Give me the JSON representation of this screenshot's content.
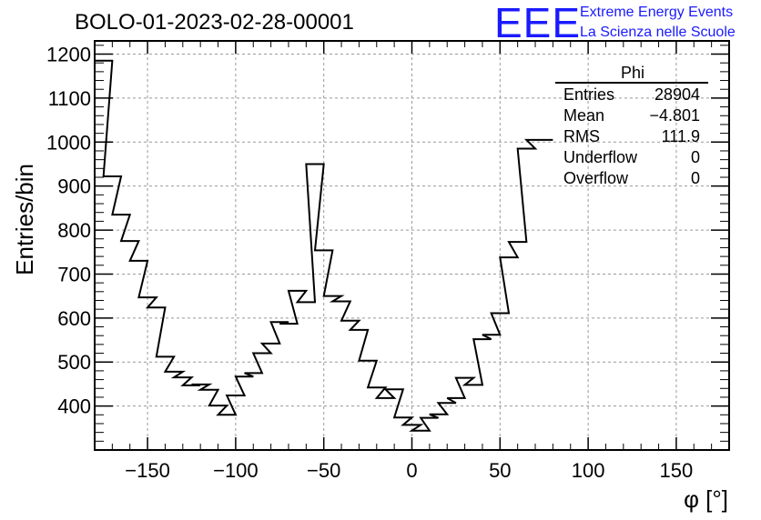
{
  "chart_data": {
    "type": "bar",
    "title": "BOLO-01-2023-02-28-00001",
    "xlabel": "φ [°]",
    "ylabel": "Entries/bin",
    "xlim": [
      -180,
      180
    ],
    "ylim": [
      300,
      1230
    ],
    "bin_width": 10,
    "x_ticks": [
      -150,
      -100,
      -50,
      0,
      50,
      100,
      150
    ],
    "x_tick_labels": [
      "−150",
      "−100",
      "−50",
      "0",
      "50",
      "100",
      "150"
    ],
    "y_ticks": [
      400,
      500,
      600,
      700,
      800,
      900,
      1000,
      1100,
      1200
    ],
    "y_tick_labels": [
      "400",
      "500",
      "600",
      "700",
      "800",
      "900",
      "1000",
      "1100",
      "1200"
    ],
    "grid": true,
    "bins": [
      {
        "x": -175,
        "y": 1185
      },
      {
        "x": -170,
        "y": 922
      },
      {
        "x": -165,
        "y": 835
      },
      {
        "x": -160,
        "y": 775
      },
      {
        "x": -155,
        "y": 730
      },
      {
        "x": -150,
        "y": 647
      },
      {
        "x": -145,
        "y": 624
      },
      {
        "x": -140,
        "y": 512
      },
      {
        "x": -135,
        "y": 478
      },
      {
        "x": -130,
        "y": 465
      },
      {
        "x": -125,
        "y": 447
      },
      {
        "x": -120,
        "y": 449
      },
      {
        "x": -115,
        "y": 437
      },
      {
        "x": -110,
        "y": 401
      },
      {
        "x": -105,
        "y": 380
      },
      {
        "x": -100,
        "y": 424
      },
      {
        "x": -95,
        "y": 467
      },
      {
        "x": -90,
        "y": 475
      },
      {
        "x": -85,
        "y": 520
      },
      {
        "x": -80,
        "y": 542
      },
      {
        "x": -75,
        "y": 591
      },
      {
        "x": -70,
        "y": 587
      },
      {
        "x": -65,
        "y": 662
      },
      {
        "x": -60,
        "y": 636
      },
      {
        "x": -55,
        "y": 950
      },
      {
        "x": -50,
        "y": 754
      },
      {
        "x": -45,
        "y": 650
      },
      {
        "x": -40,
        "y": 638
      },
      {
        "x": -35,
        "y": 594
      },
      {
        "x": -30,
        "y": 573
      },
      {
        "x": -25,
        "y": 503
      },
      {
        "x": -20,
        "y": 442
      },
      {
        "x": -15,
        "y": 418
      },
      {
        "x": -10,
        "y": 438
      },
      {
        "x": -5,
        "y": 374
      },
      {
        "x": 0,
        "y": 357
      },
      {
        "x": 5,
        "y": 344
      },
      {
        "x": 10,
        "y": 373
      },
      {
        "x": 15,
        "y": 381
      },
      {
        "x": 20,
        "y": 407
      },
      {
        "x": 25,
        "y": 418
      },
      {
        "x": 30,
        "y": 464
      },
      {
        "x": 35,
        "y": 448
      },
      {
        "x": 40,
        "y": 552
      },
      {
        "x": 45,
        "y": 562
      },
      {
        "x": 50,
        "y": 611
      },
      {
        "x": 55,
        "y": 738
      },
      {
        "x": 60,
        "y": 773
      },
      {
        "x": 65,
        "y": 985
      },
      {
        "x": 70,
        "y": 1005
      },
      {
        "x": 75,
        "y": 1005
      }
    ]
  },
  "stats_box": {
    "title": "Phi",
    "rows": [
      {
        "label": "Entries",
        "value": "28904"
      },
      {
        "label": "Mean",
        "value": "−4.801"
      },
      {
        "label": "RMS",
        "value": "111.9"
      },
      {
        "label": "Underflow",
        "value": "0"
      },
      {
        "label": "Overflow",
        "value": "0"
      }
    ]
  },
  "logo": {
    "mark": "EEE",
    "line1": "Extreme Energy Events",
    "line2": "La Scienza nelle Scuole",
    "color": "#1a1aff"
  }
}
